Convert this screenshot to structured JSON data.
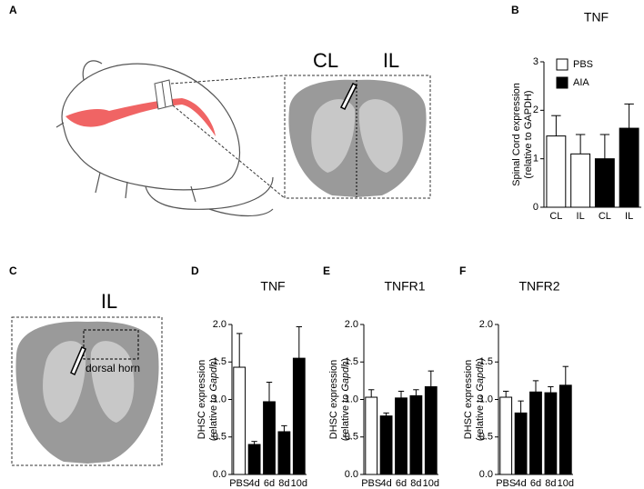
{
  "figure": {
    "panel_a": {
      "label": "A",
      "left": "CL",
      "right": "IL"
    },
    "panel_c": {
      "label": "C",
      "side": "IL",
      "region": "dorsal horn"
    }
  },
  "chart_data": [
    {
      "type": "bar",
      "panel": "B",
      "title": "TNF",
      "ylabel": [
        "Spinal Cord expression",
        "(relative to GAPDH)"
      ],
      "categories": [
        "CL",
        "IL",
        "CL",
        "IL"
      ],
      "values": [
        1.47,
        1.1,
        1.0,
        1.63
      ],
      "errors": [
        0.42,
        0.4,
        0.5,
        0.5
      ],
      "colors": [
        "#ffffff",
        "#ffffff",
        "#000000",
        "#000000"
      ],
      "legend": [
        {
          "name": "PBS",
          "color": "#ffffff"
        },
        {
          "name": "AIA",
          "color": "#000000"
        }
      ],
      "ylim": [
        0,
        3
      ],
      "yticks": [
        0,
        1,
        2,
        3
      ]
    },
    {
      "type": "bar",
      "panel": "D",
      "title": "TNF",
      "ylabel": [
        "DHSC expression",
        "(relative to ",
        "Gapdh",
        ")"
      ],
      "categories": [
        "PBS",
        "4d",
        "6d",
        "8d",
        "10d"
      ],
      "values": [
        1.43,
        0.4,
        0.97,
        0.57,
        1.55
      ],
      "errors": [
        0.45,
        0.04,
        0.26,
        0.08,
        0.42
      ],
      "colors": [
        "#ffffff",
        "#000000",
        "#000000",
        "#000000",
        "#000000"
      ],
      "ylim": [
        0,
        2
      ],
      "yticks": [
        {
          "value": 0,
          "label": "0.0"
        },
        0.5,
        {
          "value": 1,
          "label": "1.0"
        },
        1.5,
        {
          "value": 2,
          "label": "2.0"
        }
      ]
    },
    {
      "type": "bar",
      "panel": "E",
      "title": "TNFR1",
      "ylabel": [
        "DHSC expression",
        "(relative to ",
        "Gapdh",
        ")"
      ],
      "categories": [
        "PBS",
        "4d",
        "6d",
        "8d",
        "10d"
      ],
      "values": [
        1.03,
        0.78,
        1.02,
        1.05,
        1.17
      ],
      "errors": [
        0.1,
        0.04,
        0.09,
        0.08,
        0.21
      ],
      "colors": [
        "#ffffff",
        "#000000",
        "#000000",
        "#000000",
        "#000000"
      ],
      "ylim": [
        0,
        2
      ],
      "yticks": [
        {
          "value": 0,
          "label": "0.0"
        },
        0.5,
        {
          "value": 1,
          "label": "1.0"
        },
        1.5,
        {
          "value": 2,
          "label": "2.0"
        }
      ]
    },
    {
      "type": "bar",
      "panel": "F",
      "title": "TNFR2",
      "ylabel": [
        "DHSC expression",
        "(relative to ",
        "Gapdh",
        ")"
      ],
      "categories": [
        "PBS",
        "4d",
        "6d",
        "8d",
        "10d"
      ],
      "values": [
        1.03,
        0.82,
        1.1,
        1.09,
        1.19
      ],
      "errors": [
        0.08,
        0.16,
        0.15,
        0.08,
        0.25
      ],
      "colors": [
        "#ffffff",
        "#000000",
        "#000000",
        "#000000",
        "#000000"
      ],
      "ylim": [
        0,
        2
      ],
      "yticks": [
        {
          "value": 0,
          "label": "0.0"
        },
        0.5,
        {
          "value": 1,
          "label": "1.0"
        },
        1.5,
        {
          "value": 2,
          "label": "2.0"
        }
      ]
    }
  ]
}
